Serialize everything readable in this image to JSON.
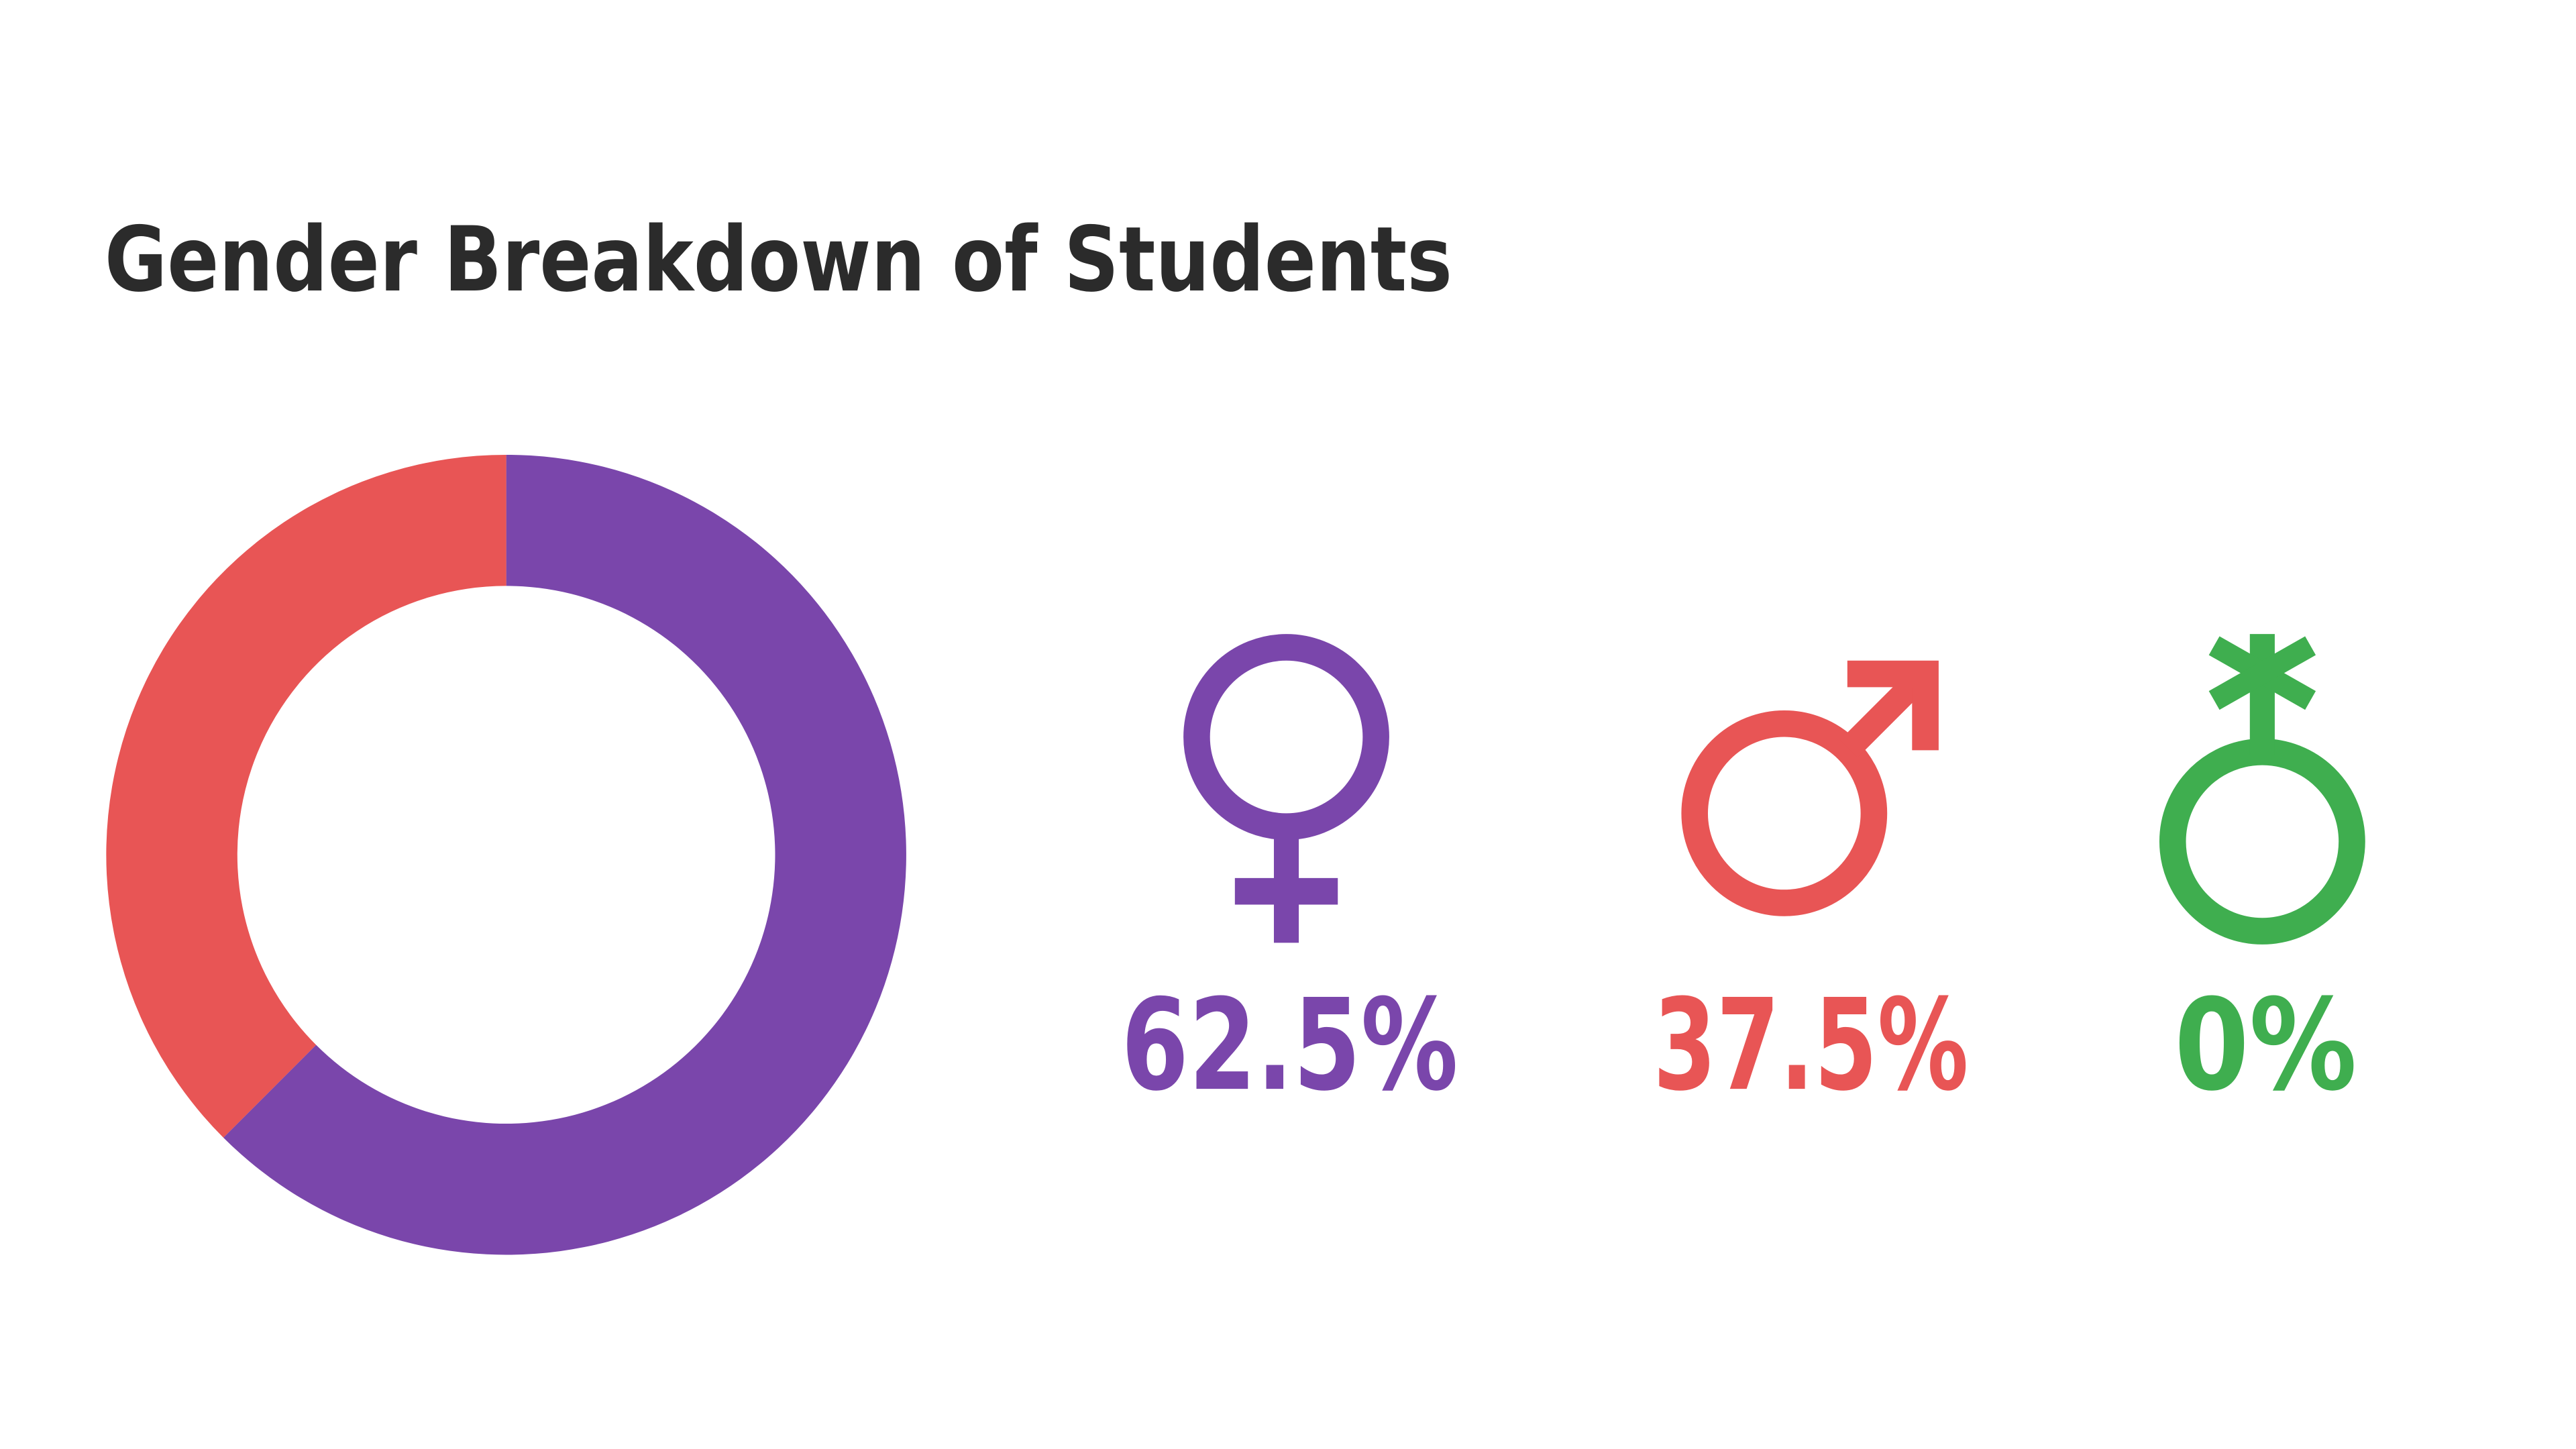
{
  "chart_data": {
    "type": "pie",
    "title": "Gender Breakdown of Students",
    "values": [
      62.5,
      37.5,
      0
    ],
    "value_labels": [
      "62.5%",
      "37.5%",
      "0%"
    ],
    "colors": [
      "#7a46ab",
      "#e85555",
      "#3fae4f"
    ]
  }
}
